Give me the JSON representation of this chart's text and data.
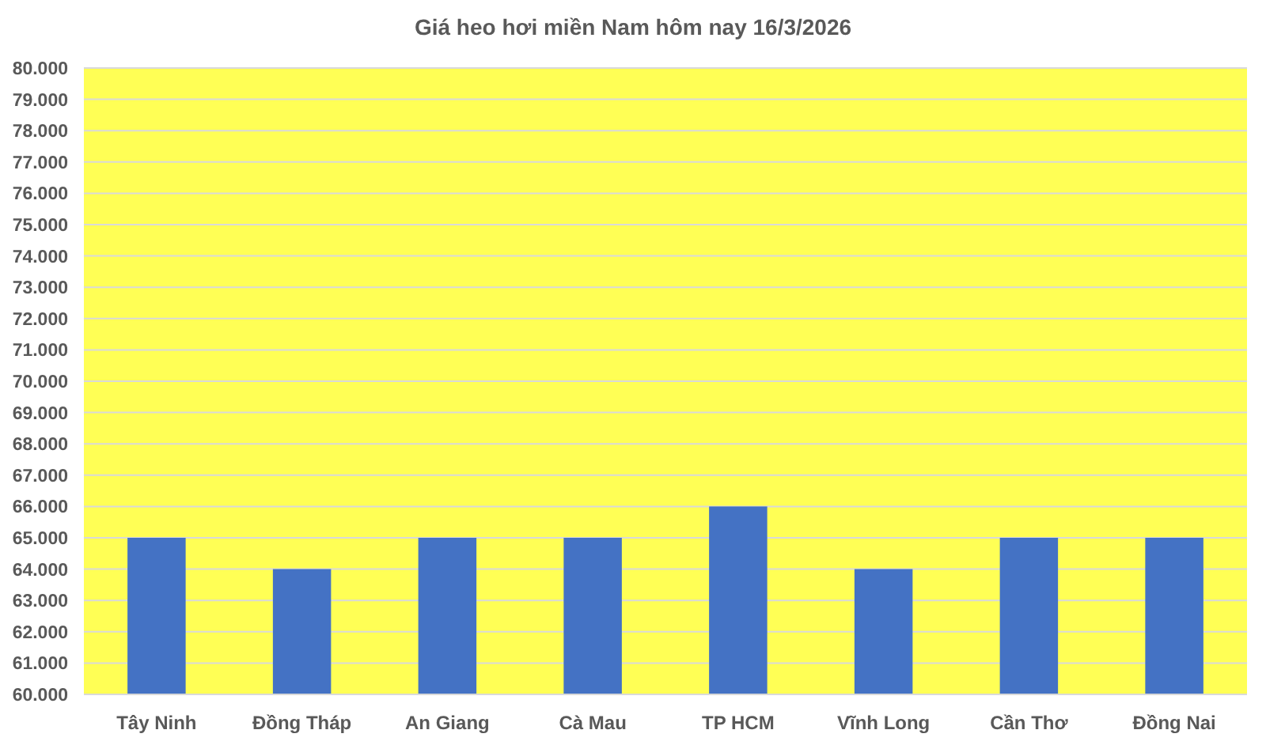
{
  "chart_data": {
    "type": "bar",
    "title": "Giá heo hơi miền Nam hôm nay 16/3/2026",
    "categories": [
      "Tây Ninh",
      "Đồng Tháp",
      "An Giang",
      "Cà Mau",
      "TP HCM",
      "Vĩnh Long",
      "Cần Thơ",
      "Đồng Nai"
    ],
    "values": [
      65000,
      64000,
      65000,
      65000,
      66000,
      64000,
      65000,
      65000
    ],
    "color": "#4472c4",
    "ylim": [
      60000,
      80000
    ],
    "yticks": [
      {
        "value": 60000,
        "label": "60.000"
      },
      {
        "value": 61000,
        "label": "61.000"
      },
      {
        "value": 62000,
        "label": "62.000"
      },
      {
        "value": 63000,
        "label": "63.000"
      },
      {
        "value": 64000,
        "label": "64.000"
      },
      {
        "value": 65000,
        "label": "65.000"
      },
      {
        "value": 66000,
        "label": "66.000"
      },
      {
        "value": 67000,
        "label": "67.000"
      },
      {
        "value": 68000,
        "label": "68.000"
      },
      {
        "value": 69000,
        "label": "69.000"
      },
      {
        "value": 70000,
        "label": "70.000"
      },
      {
        "value": 71000,
        "label": "71.000"
      },
      {
        "value": 72000,
        "label": "72.000"
      },
      {
        "value": 73000,
        "label": "73.000"
      },
      {
        "value": 74000,
        "label": "74.000"
      },
      {
        "value": 75000,
        "label": "75.000"
      },
      {
        "value": 76000,
        "label": "76.000"
      },
      {
        "value": 77000,
        "label": "77.000"
      },
      {
        "value": 78000,
        "label": "78.000"
      },
      {
        "value": 79000,
        "label": "79.000"
      },
      {
        "value": 80000,
        "label": "80.000"
      }
    ],
    "grid": "y"
  }
}
